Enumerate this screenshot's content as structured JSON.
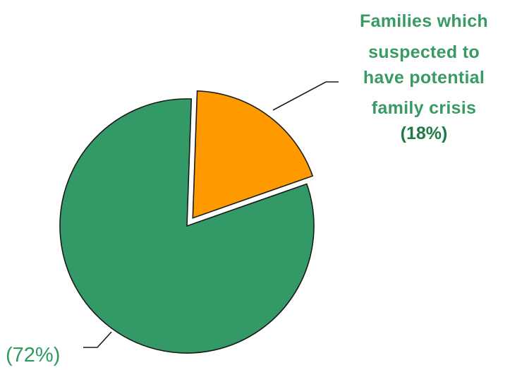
{
  "chart_data": {
    "type": "pie",
    "slices": [
      {
        "label_lines": [
          "Families which",
          "suspected to",
          "have potential",
          "family crisis"
        ],
        "value_label": "(18%)",
        "value": 18,
        "color": "#ff9900",
        "exploded": true
      },
      {
        "label_lines": [],
        "value_label": "(72%)",
        "value": 72,
        "color": "#339966",
        "exploded": false
      }
    ]
  }
}
